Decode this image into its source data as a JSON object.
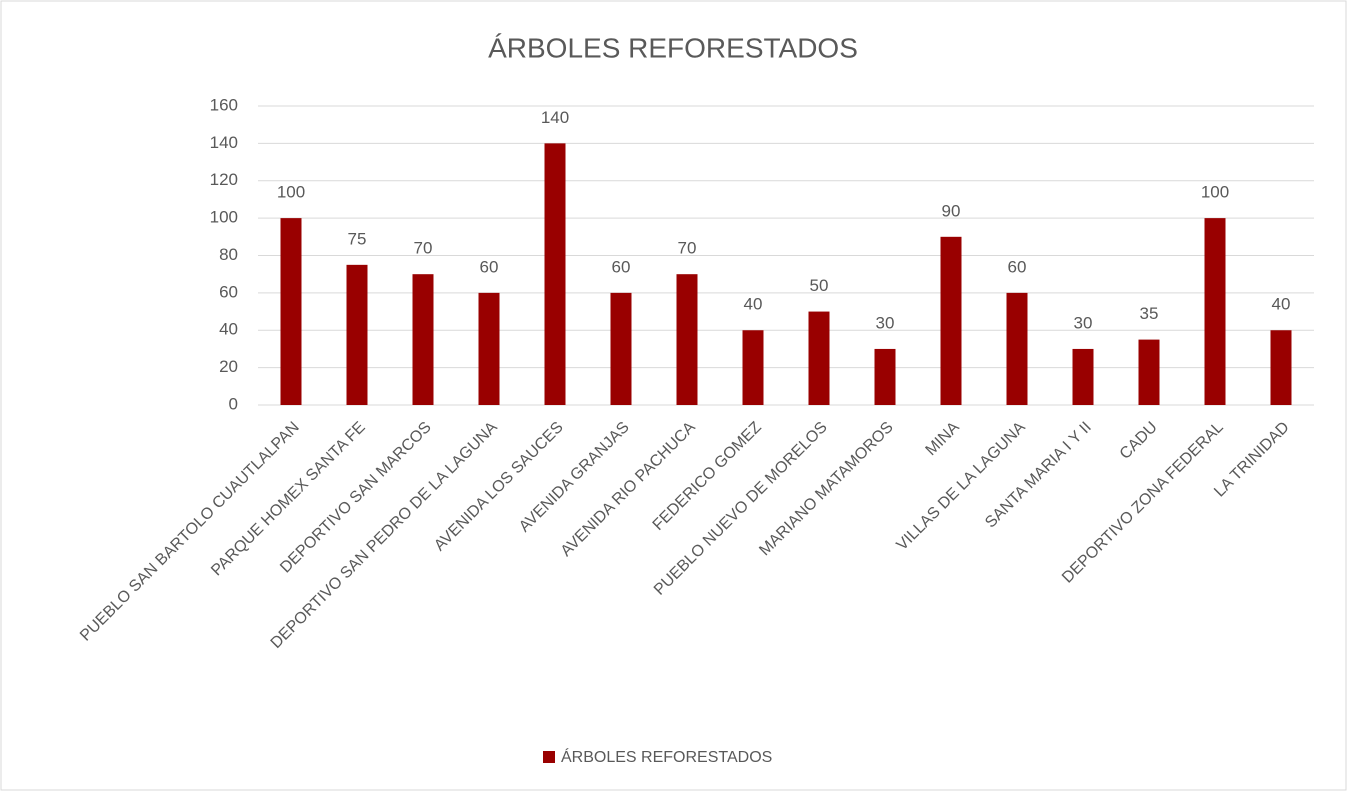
{
  "chart_data": {
    "type": "bar",
    "title": "ÁRBOLES REFORESTADOS",
    "categories": [
      "PUEBLO SAN BARTOLO CUAUTLALPAN",
      "PARQUE HOMEX SANTA FE",
      "DEPORTIVO SAN MARCOS",
      "DEPORTIVO SAN PEDRO DE LA LAGUNA",
      "AVENIDA LOS SAUCES",
      "AVENIDA GRANJAS",
      "AVENIDA RIO PACHUCA",
      "FEDERICO GOMEZ",
      "PUEBLO NUEVO DE MORELOS",
      "MARIANO MATAMOROS",
      "MINA",
      "VILLAS DE LA LAGUNA",
      "SANTA MARIA I Y II",
      "CADU",
      "DEPORTIVO ZONA FEDERAL",
      "LA TRINIDAD"
    ],
    "series": [
      {
        "name": "ÁRBOLES REFORESTADOS",
        "color": "#990000",
        "values": [
          100,
          75,
          70,
          60,
          140,
          60,
          70,
          40,
          50,
          30,
          90,
          60,
          30,
          35,
          100,
          40
        ]
      }
    ],
    "ylim": [
      0,
      160
    ],
    "yticks": [
      0,
      20,
      40,
      60,
      80,
      100,
      120,
      140,
      160
    ],
    "grid": true,
    "legend": "bottom"
  }
}
